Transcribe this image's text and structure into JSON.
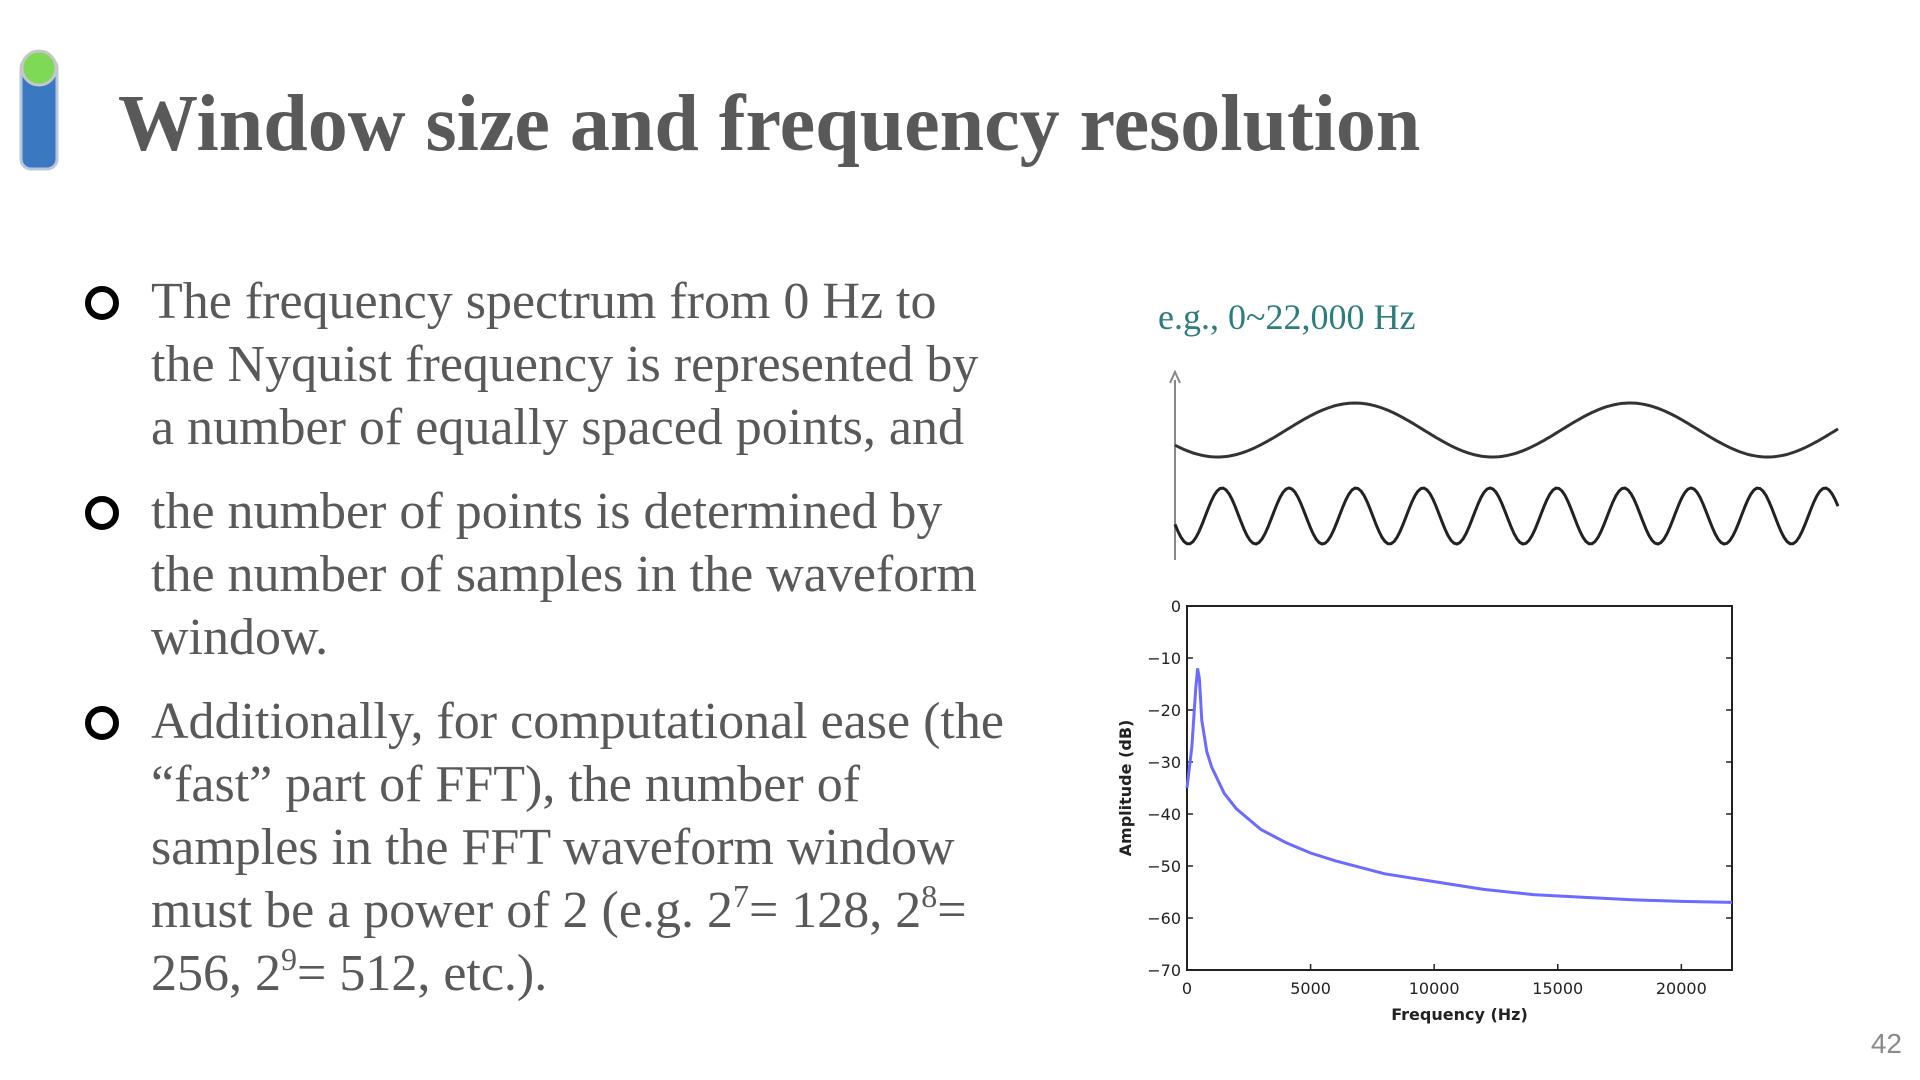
{
  "slide": {
    "title": "Window size and frequency resolution",
    "page_number": "42"
  },
  "bullets": [
    {
      "text": "The frequency spectrum from 0 Hz to\nthe Nyquist frequency is represented by\na number of equally spaced points, and"
    },
    {
      "text": "the number of points is determined by\nthe number of samples in the waveform\nwindow."
    },
    {
      "text_parts": [
        "Additionally, for computational ease (the\n“fast” part of FFT), the number of\nsamples in the FFT waveform window\nmust be a power of 2 (e.g. 2",
        "7",
        "= 128, 2",
        "8",
        "=\n256, 2",
        "9",
        "= 512, etc.)."
      ]
    }
  ],
  "annotation": "e.g., 0~22,000 Hz",
  "colors": {
    "title": "#595959",
    "body": "#595959",
    "annotation": "#2e7d7d",
    "spectrum_line": "#6b6bff",
    "marker_top": "#7ed957",
    "marker_bottom": "#3a78c2"
  },
  "chart_data": {
    "type": "line",
    "xlabel": "Frequency (Hz)",
    "ylabel": "Amplitude (dB)",
    "xlim": [
      0,
      22050
    ],
    "ylim": [
      -70,
      0
    ],
    "x_ticks": [
      0,
      5000,
      10000,
      15000,
      20000
    ],
    "y_ticks": [
      0,
      -10,
      -20,
      -30,
      -40,
      -50,
      -60,
      -70
    ],
    "grid": false,
    "series": [
      {
        "x": [
          0,
          200,
          350,
          430,
          500,
          600,
          800,
          1000,
          1500,
          2000,
          3000,
          4000,
          5000,
          6000,
          8000,
          10000,
          12000,
          14000,
          16000,
          18000,
          20000,
          22050
        ],
        "values": [
          -35,
          -27,
          -16,
          -12,
          -14,
          -22,
          -28,
          -31,
          -36,
          -39,
          -43,
          -45.5,
          -47.5,
          -49,
          -51.5,
          -53,
          -54.5,
          -55.5,
          -56,
          -56.5,
          -56.8,
          -57
        ]
      }
    ]
  }
}
